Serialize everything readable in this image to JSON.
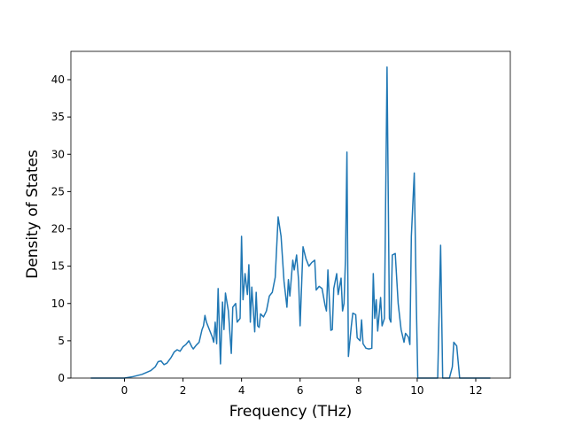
{
  "chart_data": {
    "type": "line",
    "xlabel": "Frequency (THz)",
    "ylabel": "Density of States",
    "color": "#1f77b4",
    "grid": false,
    "xlim": [
      -1.83,
      13.18
    ],
    "ylim": [
      0,
      43.8
    ],
    "xticks": [
      0,
      2,
      4,
      6,
      8,
      10,
      12
    ],
    "yticks": [
      0,
      5,
      10,
      15,
      20,
      25,
      30,
      35,
      40
    ],
    "x": [
      -1.15,
      0,
      0.3,
      0.6,
      0.9,
      1.05,
      1.15,
      1.25,
      1.35,
      1.45,
      1.6,
      1.7,
      1.8,
      1.9,
      2.0,
      2.1,
      2.2,
      2.3,
      2.35,
      2.45,
      2.55,
      2.65,
      2.7,
      2.75,
      2.8,
      2.9,
      3.0,
      3.05,
      3.1,
      3.15,
      3.2,
      3.28,
      3.35,
      3.4,
      3.45,
      3.55,
      3.65,
      3.7,
      3.8,
      3.85,
      3.95,
      4.0,
      4.05,
      4.12,
      4.2,
      4.25,
      4.3,
      4.35,
      4.45,
      4.5,
      4.55,
      4.6,
      4.65,
      4.75,
      4.85,
      4.95,
      5.05,
      5.15,
      5.25,
      5.35,
      5.45,
      5.55,
      5.6,
      5.65,
      5.75,
      5.8,
      5.88,
      5.95,
      6.0,
      6.1,
      6.2,
      6.3,
      6.4,
      6.5,
      6.55,
      6.65,
      6.75,
      6.85,
      6.9,
      6.95,
      7.05,
      7.1,
      7.15,
      7.25,
      7.3,
      7.4,
      7.45,
      7.5,
      7.55,
      7.6,
      7.65,
      7.75,
      7.8,
      7.9,
      7.95,
      8.05,
      8.1,
      8.15,
      8.25,
      8.35,
      8.45,
      8.5,
      8.55,
      8.6,
      8.65,
      8.75,
      8.8,
      8.88,
      8.97,
      9.05,
      9.1,
      9.15,
      9.25,
      9.35,
      9.45,
      9.55,
      9.6,
      9.7,
      9.75,
      9.8,
      9.9,
      9.97,
      10.02,
      10.7,
      10.8,
      10.87,
      11.1,
      11.2,
      11.25,
      11.35,
      11.45,
      12.5
    ],
    "values": [
      0,
      0,
      0.2,
      0.5,
      1.0,
      1.5,
      2.2,
      2.3,
      1.8,
      2.0,
      2.8,
      3.5,
      3.8,
      3.6,
      4.2,
      4.5,
      5.0,
      4.2,
      3.9,
      4.4,
      4.8,
      6.5,
      7.0,
      8.4,
      7.5,
      6.5,
      5.5,
      4.8,
      7.5,
      4.6,
      12.0,
      1.9,
      10.2,
      6.5,
      11.4,
      9.0,
      3.3,
      9.5,
      10.0,
      7.5,
      8.0,
      19.0,
      10.5,
      14.0,
      11.2,
      15.2,
      7.5,
      12.2,
      6.2,
      11.5,
      7.0,
      6.8,
      8.6,
      8.2,
      9.0,
      11.0,
      11.5,
      13.5,
      21.6,
      19.0,
      13.0,
      9.5,
      13.2,
      11.0,
      15.8,
      14.5,
      16.5,
      13.0,
      7.0,
      17.6,
      16.0,
      15.0,
      15.5,
      15.8,
      11.8,
      12.3,
      12.0,
      9.8,
      9.0,
      14.5,
      6.4,
      6.5,
      12.0,
      14.0,
      11.2,
      13.4,
      9.0,
      10.0,
      16.0,
      30.3,
      2.9,
      7.0,
      8.7,
      8.5,
      5.4,
      5.0,
      7.8,
      4.6,
      4.0,
      3.9,
      4.0,
      14.0,
      8.0,
      10.5,
      6.3,
      10.8,
      7.0,
      8.0,
      41.7,
      8.0,
      7.5,
      16.5,
      16.7,
      10.0,
      6.5,
      4.8,
      6.0,
      5.5,
      4.5,
      19.0,
      27.5,
      10.0,
      0,
      0,
      17.8,
      0,
      0,
      1.5,
      4.8,
      4.3,
      0,
      0
    ]
  }
}
